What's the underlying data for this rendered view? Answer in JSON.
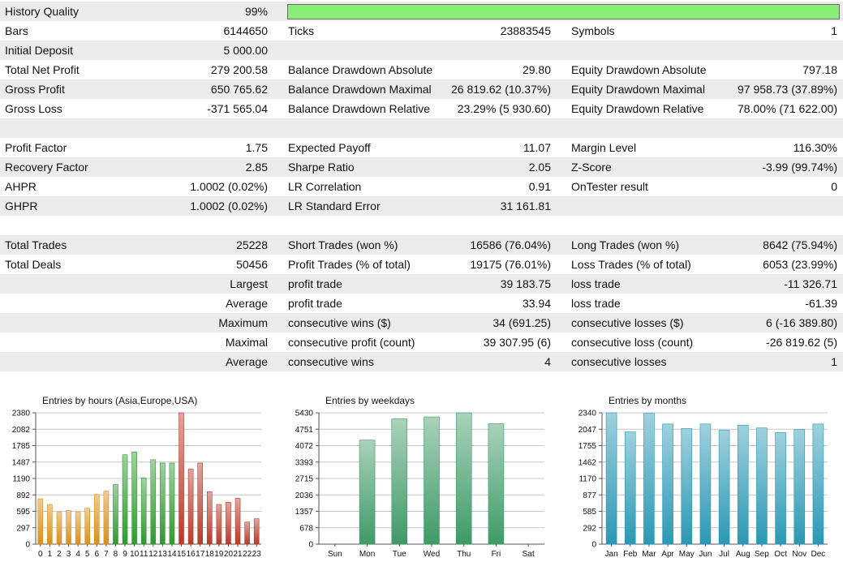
{
  "colors": {
    "row_shade": "#ececec",
    "quality_bar": "#88ee77",
    "bar_hours_asia": "#d9901a",
    "bar_hours_europe": "#2f9a2f",
    "bar_hours_usa": "#b83a2a",
    "bar_weekdays": "#3f9a66",
    "bar_months": "#2a98b4",
    "grid": "#c8c8c8"
  },
  "rows": [
    {
      "l1": "History Quality",
      "v1": "99%",
      "quality_bar": 0.99
    },
    {
      "l1": "Bars",
      "v1": "6144650",
      "l2": "Ticks",
      "v2": "23883545",
      "l3": "Symbols",
      "v3": "1"
    },
    {
      "l1": "Initial Deposit",
      "v1": "5 000.00"
    },
    {
      "l1": "Total Net Profit",
      "v1": "279 200.58",
      "l2": "Balance Drawdown Absolute",
      "v2": "29.80",
      "l3": "Equity Drawdown Absolute",
      "v3": "797.18"
    },
    {
      "l1": "Gross Profit",
      "v1": "650 765.62",
      "l2": "Balance Drawdown Maximal",
      "v2": "26 819.62 (10.37%)",
      "l3": "Equity Drawdown Maximal",
      "v3": "97 958.73 (37.89%)"
    },
    {
      "l1": "Gross Loss",
      "v1": "-371 565.04",
      "l2": "Balance Drawdown Relative",
      "v2": "23.29% (5 930.60)",
      "l3": "Equity Drawdown Relative",
      "v3": "78.00% (71 622.00)"
    },
    {},
    {
      "l1": "Profit Factor",
      "v1": "1.75",
      "l2": "Expected Payoff",
      "v2": "11.07",
      "l3": "Margin Level",
      "v3": "116.30%"
    },
    {
      "l1": "Recovery Factor",
      "v1": "2.85",
      "l2": "Sharpe Ratio",
      "v2": "2.05",
      "l3": "Z-Score",
      "v3": "-3.99 (99.74%)"
    },
    {
      "l1": "AHPR",
      "v1": "1.0002 (0.02%)",
      "l2": "LR Correlation",
      "v2": "0.91",
      "l3": "OnTester result",
      "v3": "0"
    },
    {
      "l1": "GHPR",
      "v1": "1.0002 (0.02%)",
      "l2": "LR Standard Error",
      "v2": "31 161.81"
    },
    {},
    {
      "l1": "Total Trades",
      "v1": "25228",
      "l2": "Short Trades (won %)",
      "v2": "16586 (76.04%)",
      "l3": "Long Trades (won %)",
      "v3": "8642 (75.94%)"
    },
    {
      "l1": "Total Deals",
      "v1": "50456",
      "l2": "Profit Trades (% of total)",
      "v2": "19175 (76.01%)",
      "l3": "Loss Trades (% of total)",
      "v3": "6053 (23.99%)"
    },
    {
      "v1": "Largest",
      "l2": "profit trade",
      "v2": "39 183.75",
      "l3": "loss trade",
      "v3": "-11 326.71"
    },
    {
      "v1": "Average",
      "l2": "profit trade",
      "v2": "33.94",
      "l3": "loss trade",
      "v3": "-61.39"
    },
    {
      "v1": "Maximum",
      "l2": "consecutive wins ($)",
      "v2": "34 (691.25)",
      "l3": "consecutive losses ($)",
      "v3": "6 (-16 389.80)"
    },
    {
      "v1": "Maximal",
      "l2": "consecutive profit (count)",
      "v2": "39 307.95 (6)",
      "l3": "consecutive loss (count)",
      "v3": "-26 819.62 (5)"
    },
    {
      "v1": "Average",
      "l2": "consecutive wins",
      "v2": "4",
      "l3": "consecutive losses",
      "v3": "1"
    },
    {}
  ],
  "chart_data": [
    {
      "type": "bar",
      "title": "Entries by hours (Asia,Europe,USA)",
      "categories": [
        "0",
        "1",
        "2",
        "3",
        "4",
        "5",
        "6",
        "7",
        "8",
        "9",
        "10",
        "11",
        "12",
        "13",
        "14",
        "15",
        "16",
        "17",
        "18",
        "19",
        "20",
        "21",
        "22",
        "23"
      ],
      "values": [
        820,
        720,
        580,
        610,
        580,
        650,
        900,
        960,
        1080,
        1620,
        1670,
        1200,
        1530,
        1470,
        1470,
        2380,
        1360,
        1470,
        950,
        720,
        760,
        830,
        400,
        460
      ],
      "segments": [
        {
          "name": "Asia",
          "start": 0,
          "end": 7,
          "color": "#d9901a"
        },
        {
          "name": "Europe",
          "start": 8,
          "end": 14,
          "color": "#2f9a2f"
        },
        {
          "name": "USA",
          "start": 15,
          "end": 23,
          "color": "#b83a2a"
        }
      ],
      "yticks": [
        "0",
        "297",
        "595",
        "892",
        "1190",
        "1487",
        "1785",
        "2082",
        "2380"
      ],
      "ylim": [
        0,
        2380
      ],
      "grid": true
    },
    {
      "type": "bar",
      "title": "Entries by weekdays",
      "categories": [
        "Sun",
        "Mon",
        "Tue",
        "Wed",
        "Thu",
        "Fri",
        "Sat"
      ],
      "values": [
        0,
        4300,
        5180,
        5260,
        5430,
        4980,
        0
      ],
      "color": "#3f9a66",
      "yticks": [
        "0",
        "678",
        "1357",
        "2036",
        "2715",
        "3393",
        "4072",
        "4751",
        "5430"
      ],
      "ylim": [
        0,
        5430
      ],
      "grid": true
    },
    {
      "type": "bar",
      "title": "Entries by months",
      "categories": [
        "Jan",
        "Feb",
        "Mar",
        "Apr",
        "May",
        "Jun",
        "Jul",
        "Aug",
        "Sep",
        "Oct",
        "Nov",
        "Dec"
      ],
      "values": [
        2340,
        2000,
        2330,
        2140,
        2060,
        2140,
        2030,
        2120,
        2070,
        1990,
        2040,
        2140
      ],
      "color": "#2a98b4",
      "yticks": [
        "0",
        "292",
        "585",
        "877",
        "1170",
        "1462",
        "1755",
        "2047",
        "2340"
      ],
      "ylim": [
        0,
        2340
      ],
      "grid": true
    }
  ]
}
